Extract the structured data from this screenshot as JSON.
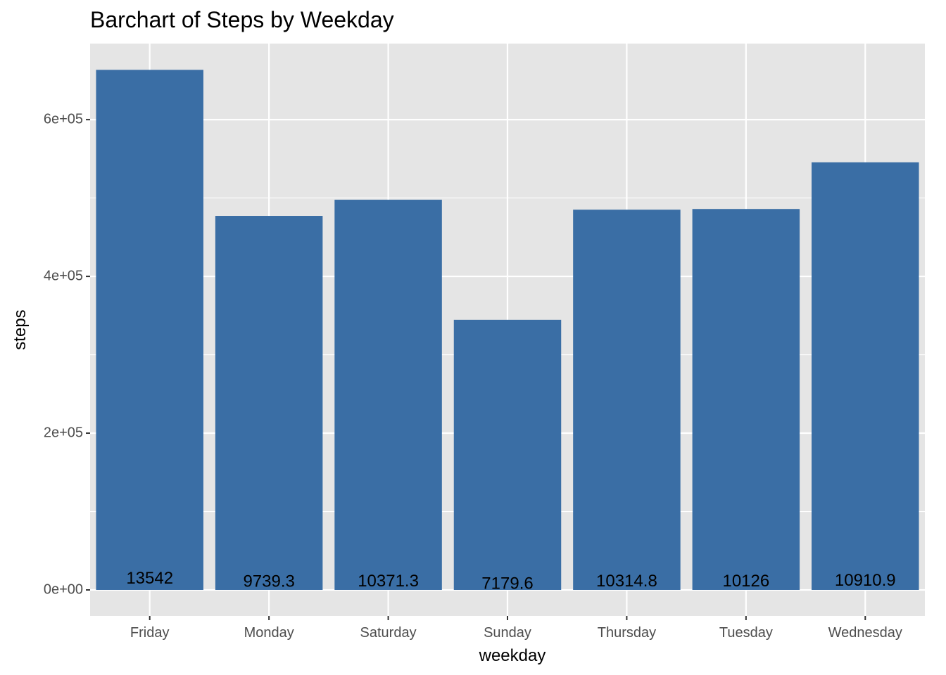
{
  "chart_data": {
    "type": "bar",
    "title": "Barchart of Steps by Weekday",
    "xlabel": "weekday",
    "ylabel": "steps",
    "categories": [
      "Friday",
      "Monday",
      "Saturday",
      "Sunday",
      "Thursday",
      "Tuesday",
      "Wednesday"
    ],
    "values": [
      663500,
      477200,
      497800,
      344600,
      485100,
      486000,
      545500
    ],
    "data_labels": [
      "13542",
      "9739.3",
      "10371.3",
      "7179.6",
      "10314.8",
      "10126",
      "10910.9"
    ],
    "y_ticks": [
      0,
      200000,
      400000,
      600000
    ],
    "y_tick_labels": [
      "0e+00",
      "2e+05",
      "4e+05",
      "6e+05"
    ],
    "ylim": [
      -33200,
      697000
    ],
    "grid": true,
    "legend": "none",
    "colors": {
      "bar": "#3A6EA5",
      "panel_bg": "#E5E5E5",
      "grid_major": "#FFFFFF",
      "tick_text": "#4D4D4D"
    }
  }
}
